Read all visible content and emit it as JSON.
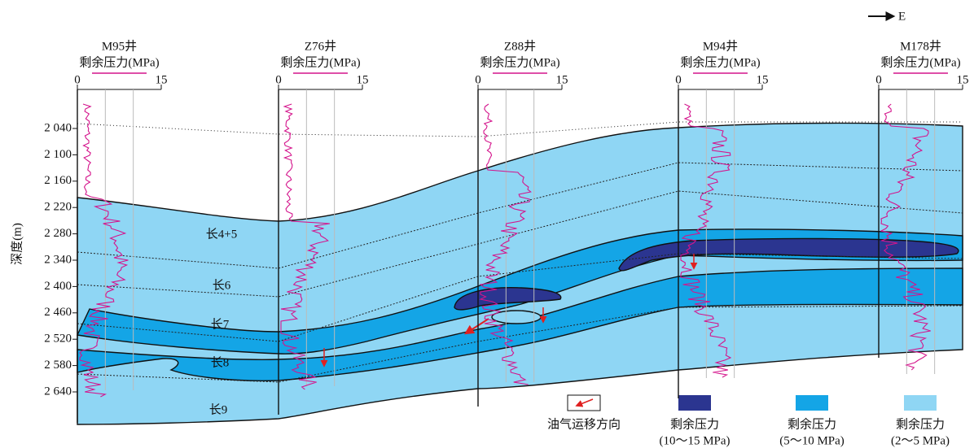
{
  "direction": "E",
  "depth_axis": {
    "label": "深度(m)",
    "ticks": [
      "2 040",
      "2 100",
      "2 160",
      "2 220",
      "2 280",
      "2 340",
      "2 400",
      "2 460",
      "2 520",
      "2 580",
      "2 640"
    ]
  },
  "wells": [
    {
      "name": "M95井",
      "curve": "剩余压力(MPa)",
      "scale": [
        "0",
        "15"
      ]
    },
    {
      "name": "Z76井",
      "curve": "剩余压力(MPa)",
      "scale": [
        "0",
        "15"
      ]
    },
    {
      "name": "Z88井",
      "curve": "剩余压力(MPa)",
      "scale": [
        "0",
        "15"
      ]
    },
    {
      "name": "M94井",
      "curve": "剩余压力(MPa)",
      "scale": [
        "0",
        "15"
      ]
    },
    {
      "name": "M178井",
      "curve": "剩余压力(MPa)",
      "scale": [
        "0",
        "15"
      ]
    }
  ],
  "formations": [
    "长4+5",
    "长6",
    "长7",
    "长8",
    "长9"
  ],
  "legend": [
    {
      "label": "油气运移方向"
    },
    {
      "label": "剩余压力",
      "range": "(10～15 MPa)"
    },
    {
      "label": "剩余压力",
      "range": "(5～10 MPa)"
    },
    {
      "label": "剩余压力",
      "range": "(2～5 MPa)"
    }
  ]
}
